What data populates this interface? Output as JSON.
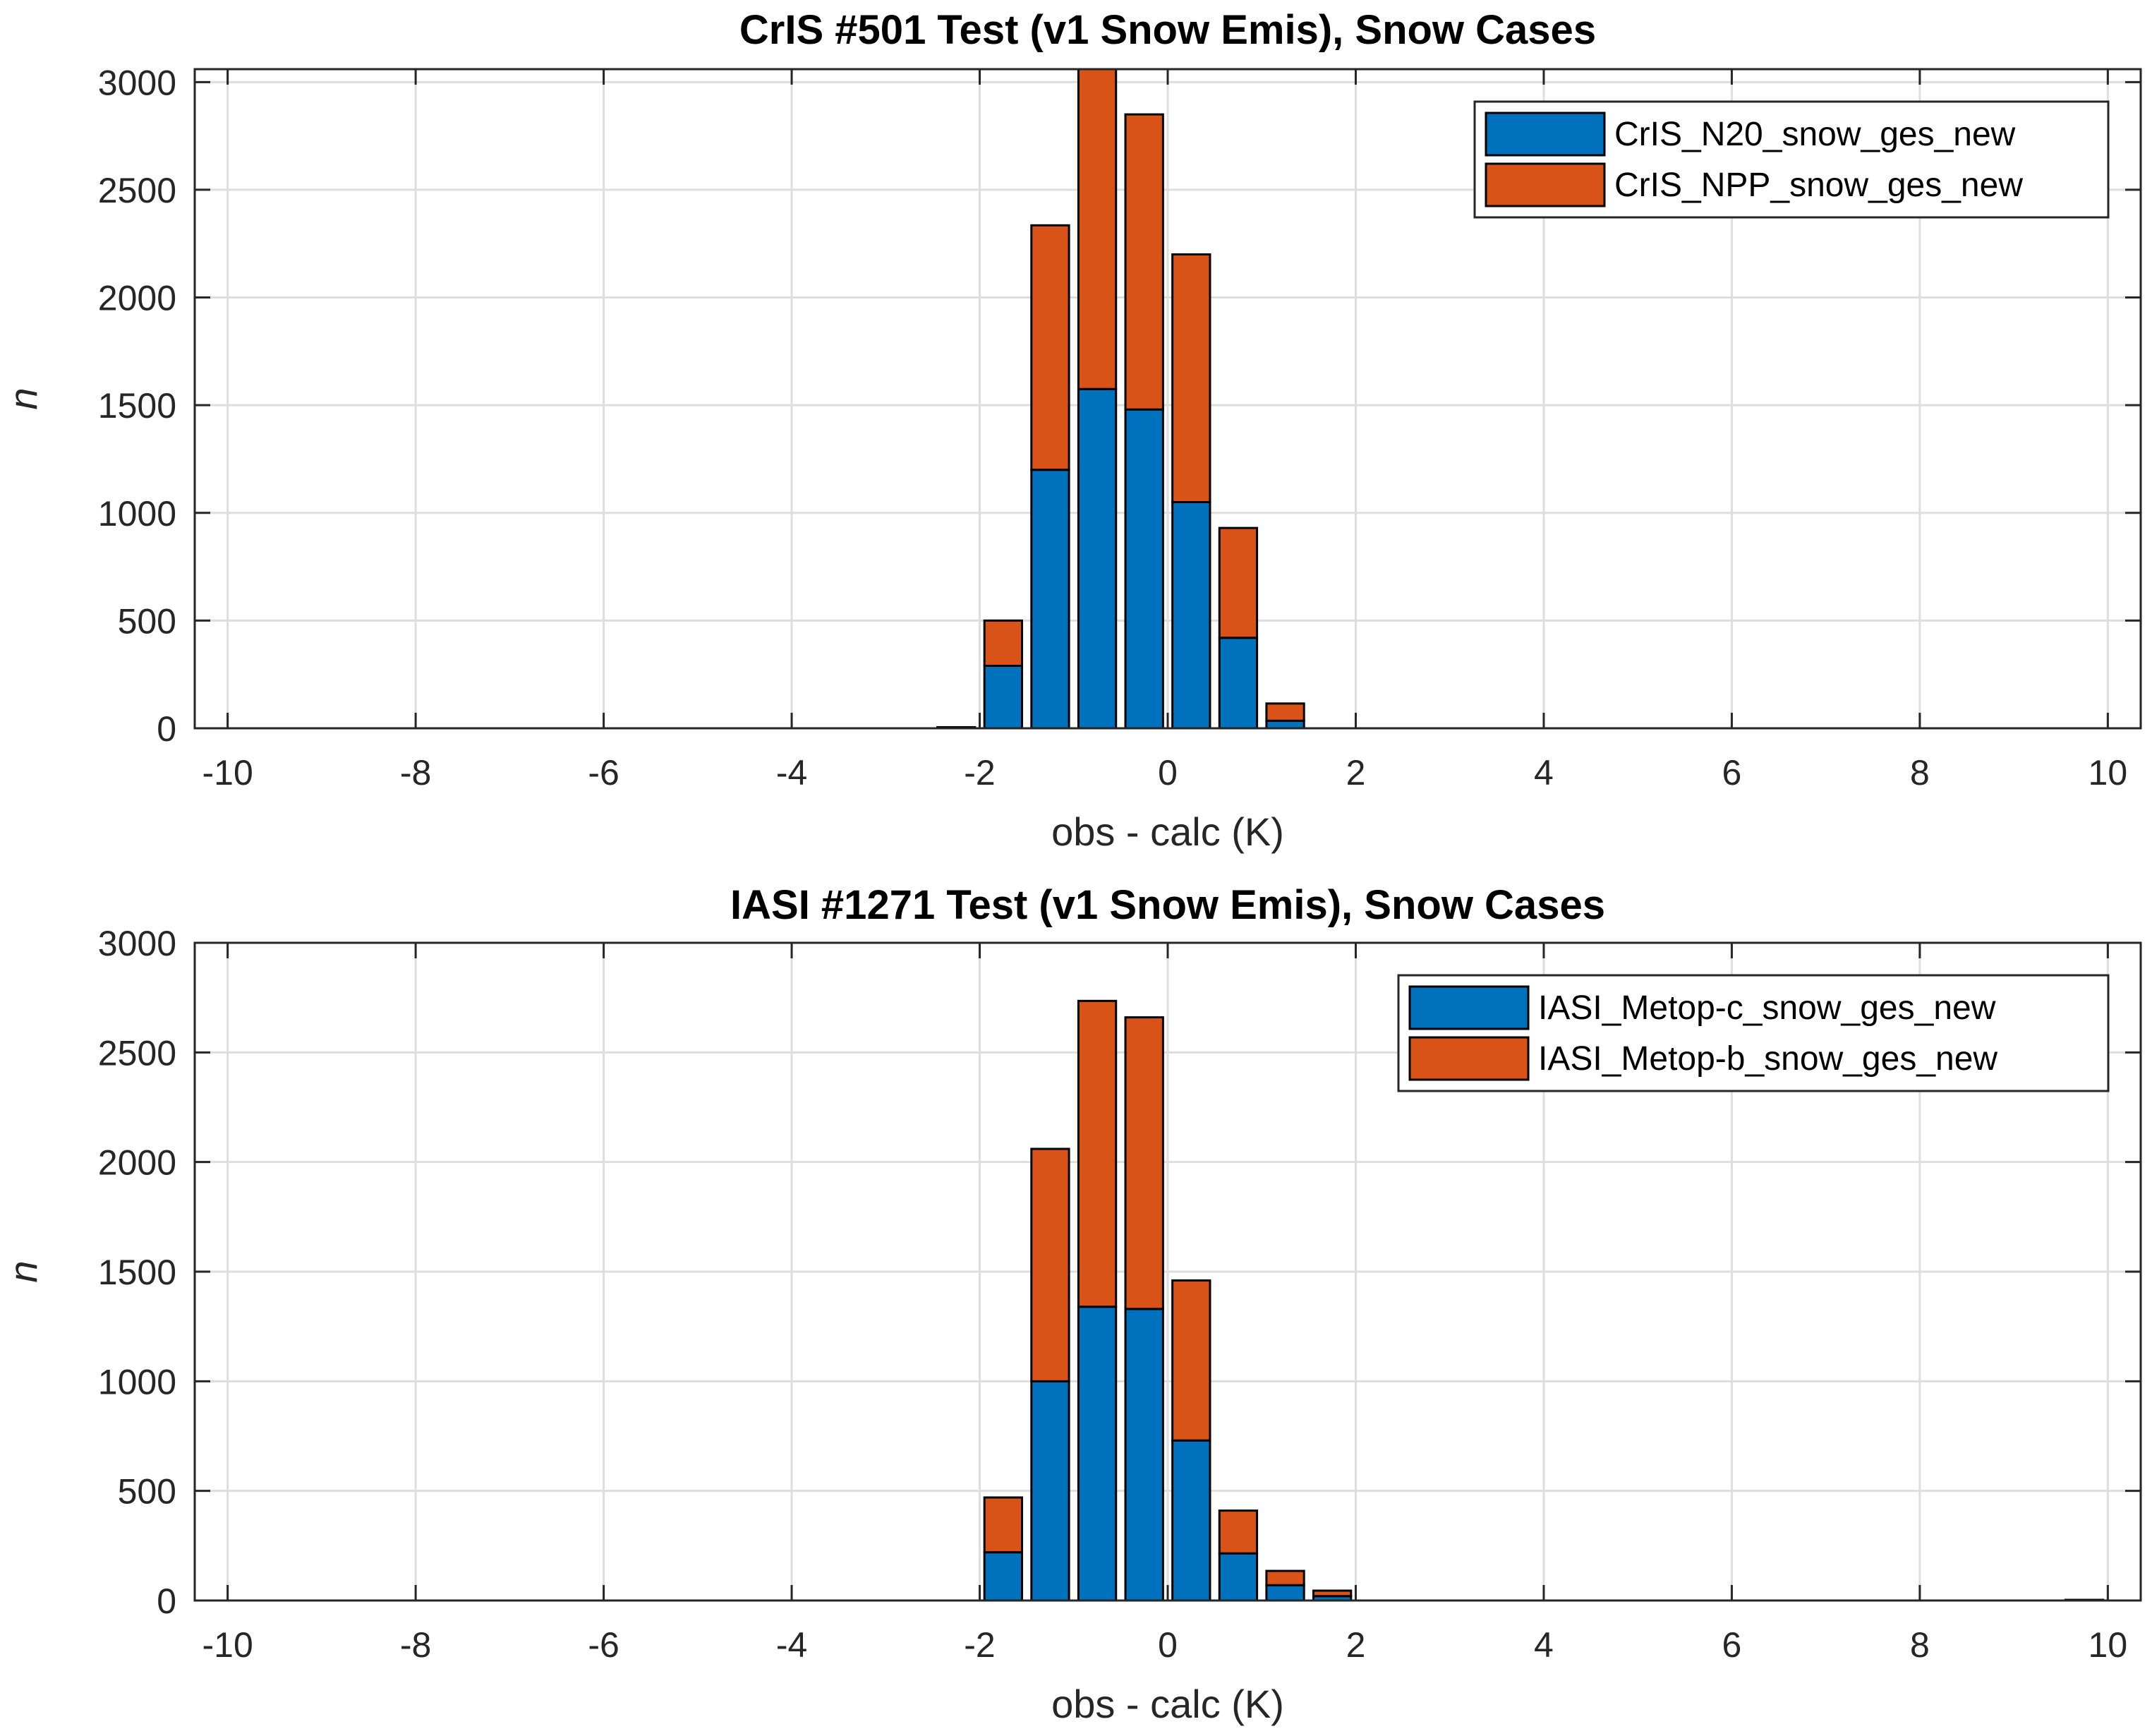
{
  "chart_data": [
    {
      "type": "bar",
      "stacked": true,
      "title": "CrIS #501 Test (v1 Snow Emis), Snow Cases",
      "xlabel": "obs - calc (K)",
      "ylabel": "n",
      "xlim": [
        -10.35,
        10.35
      ],
      "ylim": [
        0,
        3060
      ],
      "xticks": [
        -10,
        -8,
        -6,
        -4,
        -2,
        0,
        2,
        4,
        6,
        8,
        10
      ],
      "xtick_labels": [
        "-10",
        "-8",
        "-6",
        "-4",
        "-2",
        "0",
        "2",
        "4",
        "6",
        "8",
        "10"
      ],
      "yticks": [
        0,
        500,
        1000,
        1500,
        2000,
        2500,
        3000
      ],
      "ytick_labels": [
        "0",
        "500",
        "1000",
        "1500",
        "2000",
        "2500",
        "3000"
      ],
      "grid": true,
      "legend_position": "top-right",
      "bar_width": 0.4,
      "x": [
        -2.25,
        -1.75,
        -1.25,
        -0.75,
        -0.25,
        0.25,
        0.75,
        1.25
      ],
      "series": [
        {
          "name": "CrIS_N20_snow_ges_new",
          "color": "#0072BD",
          "values": [
            5,
            290,
            1200,
            1575,
            1480,
            1050,
            420,
            35
          ]
        },
        {
          "name": "CrIS_NPP_snow_ges_new",
          "color": "#D95319",
          "values": [
            0,
            210,
            1135,
            1485,
            1370,
            1150,
            510,
            80
          ]
        }
      ]
    },
    {
      "type": "bar",
      "stacked": true,
      "title": "IASI #1271 Test (v1 Snow Emis), Snow Cases",
      "xlabel": "obs - calc (K)",
      "ylabel": "n",
      "xlim": [
        -10.35,
        10.35
      ],
      "ylim": [
        0,
        3000
      ],
      "xticks": [
        -10,
        -8,
        -6,
        -4,
        -2,
        0,
        2,
        4,
        6,
        8,
        10
      ],
      "xtick_labels": [
        "-10",
        "-8",
        "-6",
        "-4",
        "-2",
        "0",
        "2",
        "4",
        "6",
        "8",
        "10"
      ],
      "yticks": [
        0,
        500,
        1000,
        1500,
        2000,
        2500,
        3000
      ],
      "ytick_labels": [
        "0",
        "500",
        "1000",
        "1500",
        "2000",
        "2500",
        "3000"
      ],
      "grid": true,
      "legend_position": "top-right",
      "bar_width": 0.4,
      "x": [
        -1.75,
        -1.25,
        -0.75,
        -0.25,
        0.25,
        0.75,
        1.25,
        1.75,
        9.75
      ],
      "series": [
        {
          "name": "IASI_Metop-c_snow_ges_new",
          "color": "#0072BD",
          "values": [
            220,
            1000,
            1340,
            1330,
            730,
            215,
            70,
            20,
            3
          ]
        },
        {
          "name": "IASI_Metop-b_snow_ges_new",
          "color": "#D95319",
          "values": [
            250,
            1060,
            1395,
            1330,
            730,
            195,
            65,
            25,
            0
          ]
        }
      ]
    }
  ]
}
